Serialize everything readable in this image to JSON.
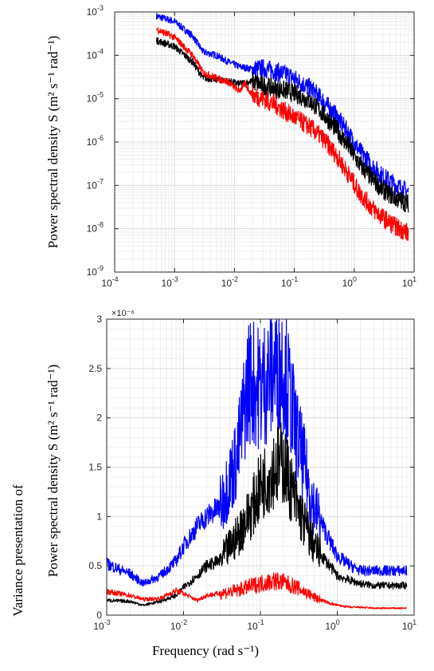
{
  "figure": {
    "top_ylabel": "Power spectral density S (m² s⁻¹ rad⁻¹)",
    "bottom_ylabel_line1": "Variance presentation of",
    "bottom_ylabel_line2": "Power spectral density S (m² s⁻¹ rad⁻¹)",
    "xlabel": "Frequency (rad s⁻¹)",
    "multiplier_label": "×10⁻⁶",
    "colors": {
      "blue": "#0000ff",
      "black": "#000000",
      "red": "#ff0000",
      "grid": "#e3e3e3",
      "axis": "#262626"
    }
  },
  "chart_data": [
    {
      "type": "line",
      "xscale": "log",
      "yscale": "log",
      "xlim": [
        0.0001,
        10
      ],
      "ylim": [
        1e-09,
        0.001
      ],
      "grid": true,
      "x_ticks": [
        {
          "v": 0.0001,
          "b": "10",
          "e": "-4"
        },
        {
          "v": 0.001,
          "b": "10",
          "e": "-3"
        },
        {
          "v": 0.01,
          "b": "10",
          "e": "-2"
        },
        {
          "v": 0.1,
          "b": "10",
          "e": "-1"
        },
        {
          "v": 1,
          "b": "10",
          "e": "0"
        },
        {
          "v": 10,
          "b": "10",
          "e": "1"
        }
      ],
      "y_ticks": [
        {
          "v": 1e-09,
          "b": "10",
          "e": "-9"
        },
        {
          "v": 1e-08,
          "b": "10",
          "e": "-8"
        },
        {
          "v": 1e-07,
          "b": "10",
          "e": "-7"
        },
        {
          "v": 1e-06,
          "b": "10",
          "e": "-6"
        },
        {
          "v": 1e-05,
          "b": "10",
          "e": "-5"
        },
        {
          "v": 0.0001,
          "b": "10",
          "e": "-4"
        },
        {
          "v": 0.001,
          "b": "10",
          "e": "-3"
        }
      ],
      "series": [
        {
          "color": "#0000ff",
          "x": [
            0.0005,
            0.001,
            0.002,
            0.003,
            0.005,
            0.008,
            0.012,
            0.02,
            0.03,
            0.05,
            0.08,
            0.12,
            0.2,
            0.3,
            0.5,
            0.8,
            1.2,
            2,
            3,
            5,
            8
          ],
          "y": [
            0.0008,
            0.0006,
            0.00028,
            0.00012,
            0.0001,
            7e-05,
            5.5e-05,
            4.8e-05,
            5e-05,
            4.2e-05,
            3.5e-05,
            2.5e-05,
            1.6e-05,
            9e-06,
            4e-06,
            1.6e-06,
            6.5e-07,
            2.8e-07,
            1.6e-07,
            1e-07,
            7e-08
          ]
        },
        {
          "color": "#000000",
          "x": [
            0.0005,
            0.001,
            0.002,
            0.003,
            0.005,
            0.008,
            0.012,
            0.02,
            0.03,
            0.05,
            0.08,
            0.12,
            0.2,
            0.3,
            0.5,
            0.8,
            1.2,
            2,
            3,
            5,
            8
          ],
          "y": [
            0.00022,
            0.00016,
            7e-05,
            3e-05,
            2.8e-05,
            2.5e-05,
            2.2e-05,
            2.5e-05,
            2e-05,
            1.7e-05,
            1.5e-05,
            1.2e-05,
            8e-06,
            4.5e-06,
            2e-06,
            8e-07,
            3.2e-07,
            1.4e-07,
            8e-08,
            5e-08,
            3.8e-08
          ]
        },
        {
          "color": "#ff0000",
          "x": [
            0.0005,
            0.001,
            0.002,
            0.003,
            0.005,
            0.008,
            0.012,
            0.015,
            0.02,
            0.03,
            0.05,
            0.08,
            0.12,
            0.2,
            0.3,
            0.5,
            0.8,
            1.2,
            2,
            3,
            5,
            8
          ],
          "y": [
            0.0004,
            0.00026,
            0.0001,
            4e-05,
            3e-05,
            2.4e-05,
            1.5e-05,
            2.2e-05,
            1.2e-05,
            1e-05,
            7e-06,
            4.5e-06,
            3.2e-06,
            2e-06,
            1.2e-06,
            5e-07,
            1.8e-07,
            7e-08,
            3e-08,
            1.8e-08,
            1.1e-08,
            8e-09
          ]
        }
      ]
    },
    {
      "type": "line",
      "xscale": "log",
      "yscale": "linear",
      "y_multiplier": "1e-6",
      "xlim": [
        0.001,
        10
      ],
      "ylim": [
        0,
        3
      ],
      "grid": true,
      "x_ticks": [
        {
          "v": 0.001,
          "b": "10",
          "e": "-3"
        },
        {
          "v": 0.01,
          "b": "10",
          "e": "-2"
        },
        {
          "v": 0.1,
          "b": "10",
          "e": "-1"
        },
        {
          "v": 1,
          "b": "10",
          "e": "0"
        },
        {
          "v": 10,
          "b": "10",
          "e": "1"
        }
      ],
      "y_ticks": [
        {
          "v": 0,
          "t": "0"
        },
        {
          "v": 0.5,
          "t": "0.5"
        },
        {
          "v": 1,
          "t": "1"
        },
        {
          "v": 1.5,
          "t": "1.5"
        },
        {
          "v": 2,
          "t": "2"
        },
        {
          "v": 2.5,
          "t": "2.5"
        },
        {
          "v": 3,
          "t": "3"
        }
      ],
      "series": [
        {
          "color": "#0000ff",
          "x": [
            0.001,
            0.002,
            0.003,
            0.005,
            0.008,
            0.01,
            0.015,
            0.02,
            0.03,
            0.05,
            0.07,
            0.1,
            0.15,
            0.2,
            0.3,
            0.5,
            0.8,
            1,
            1.5,
            2,
            3,
            5,
            8
          ],
          "y": [
            0.52,
            0.42,
            0.32,
            0.4,
            0.55,
            0.7,
            0.9,
            1.0,
            1.1,
            1.6,
            2.4,
            2.3,
            2.5,
            2.55,
            1.8,
            1.1,
            0.75,
            0.6,
            0.5,
            0.45,
            0.45,
            0.45,
            0.45
          ]
        },
        {
          "color": "#000000",
          "x": [
            0.001,
            0.002,
            0.003,
            0.005,
            0.008,
            0.01,
            0.015,
            0.02,
            0.03,
            0.05,
            0.08,
            0.1,
            0.15,
            0.2,
            0.3,
            0.5,
            0.8,
            1,
            1.5,
            2,
            3,
            5,
            8
          ],
          "y": [
            0.15,
            0.14,
            0.1,
            0.14,
            0.2,
            0.28,
            0.4,
            0.5,
            0.55,
            0.8,
            1.1,
            1.3,
            1.5,
            1.55,
            1.1,
            0.7,
            0.5,
            0.4,
            0.35,
            0.32,
            0.3,
            0.3,
            0.3
          ]
        },
        {
          "color": "#ff0000",
          "x": [
            0.001,
            0.002,
            0.003,
            0.005,
            0.008,
            0.01,
            0.015,
            0.02,
            0.03,
            0.05,
            0.08,
            0.1,
            0.15,
            0.2,
            0.3,
            0.5,
            0.8,
            1,
            1.5,
            2,
            3,
            5,
            8
          ],
          "y": [
            0.24,
            0.2,
            0.16,
            0.17,
            0.25,
            0.22,
            0.15,
            0.2,
            0.22,
            0.25,
            0.3,
            0.32,
            0.35,
            0.33,
            0.28,
            0.18,
            0.12,
            0.1,
            0.08,
            0.08,
            0.07,
            0.07,
            0.07
          ]
        }
      ]
    }
  ]
}
